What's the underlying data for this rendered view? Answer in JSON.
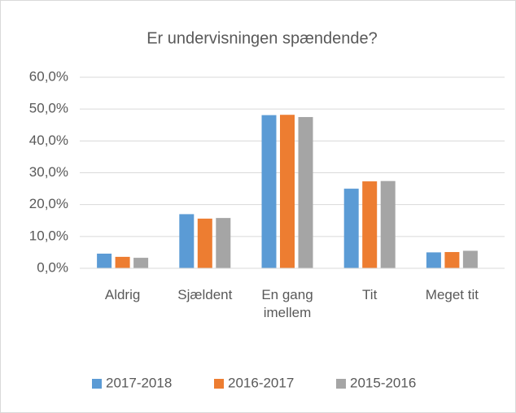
{
  "chart_data": {
    "type": "bar",
    "title": "Er undervisningen spændende?",
    "categories": [
      "Aldrig",
      "Sjældent",
      "En gang imellem",
      "Tit",
      "Meget tit"
    ],
    "series": [
      {
        "name": "2017-2018",
        "color": "#5b9bd5",
        "values": [
          4.6,
          17.0,
          48.1,
          25.0,
          5.0
        ]
      },
      {
        "name": "2016-2017",
        "color": "#ed7d31",
        "values": [
          3.6,
          15.6,
          48.2,
          27.3,
          5.1
        ]
      },
      {
        "name": "2015-2016",
        "color": "#a5a5a5",
        "values": [
          3.3,
          15.8,
          47.5,
          27.4,
          5.5
        ]
      }
    ],
    "ylim": [
      0,
      60
    ],
    "yticks": [
      {
        "value": 0,
        "label": "0,0%"
      },
      {
        "value": 10,
        "label": "10,0%"
      },
      {
        "value": 20,
        "label": "20,0%"
      },
      {
        "value": 30,
        "label": "30,0%"
      },
      {
        "value": 40,
        "label": "40,0%"
      },
      {
        "value": 50,
        "label": "50,0%"
      },
      {
        "value": 60,
        "label": "60,0%"
      }
    ],
    "grid": true,
    "legend": "bottom"
  }
}
